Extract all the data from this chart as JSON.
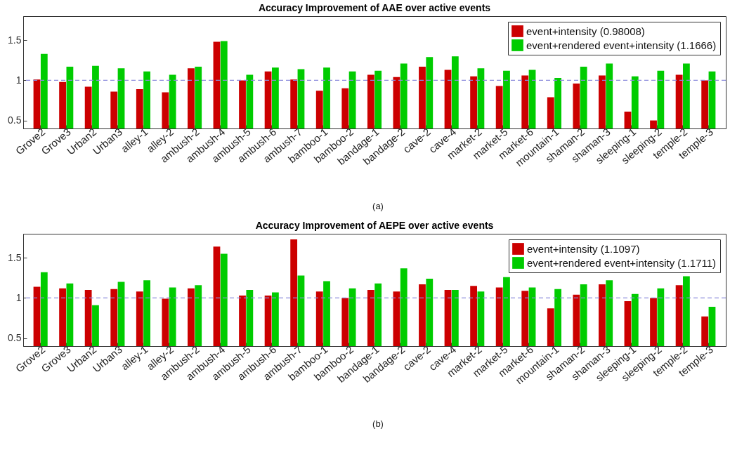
{
  "chart_data": [
    {
      "type": "bar",
      "title": "Accuracy Improvement of AAE over active events",
      "categories": [
        "Grove2",
        "Grove3",
        "Urban2",
        "Urban3",
        "alley-1",
        "alley-2",
        "ambush-2",
        "ambush-4",
        "ambush-5",
        "ambush-6",
        "ambush-7",
        "bamboo-1",
        "bamboo-2",
        "bandage-1",
        "bandage-2",
        "cave-2",
        "cave-4",
        "market-2",
        "market-5",
        "market-6",
        "mountain-1",
        "shaman-2",
        "shaman-3",
        "sleeping-1",
        "sleeping-2",
        "temple-2",
        "temple-3"
      ],
      "series": [
        {
          "name": "event+intensity (0.98008)",
          "color": "#cc0000",
          "values": [
            1.01,
            0.98,
            0.92,
            0.86,
            0.89,
            0.85,
            1.15,
            1.48,
            1.0,
            1.11,
            1.01,
            0.87,
            0.9,
            1.07,
            1.04,
            1.17,
            1.13,
            1.05,
            0.93,
            1.06,
            0.79,
            0.96,
            1.06,
            0.61,
            0.5,
            1.07,
            1.0
          ]
        },
        {
          "name": "event+rendered event+intensity (1.1666)",
          "color": "#00cc00",
          "values": [
            1.33,
            1.17,
            1.18,
            1.15,
            1.11,
            1.07,
            1.17,
            1.49,
            1.07,
            1.16,
            1.14,
            1.16,
            1.11,
            1.12,
            1.21,
            1.29,
            1.3,
            1.15,
            1.12,
            1.13,
            1.03,
            1.17,
            1.21,
            1.05,
            1.12,
            1.21,
            1.11
          ]
        }
      ],
      "ylim": [
        0.4,
        1.8
      ],
      "yticks": [
        0.5,
        1,
        1.5
      ],
      "grid": false,
      "legend": "top right",
      "ref_lines": [
        {
          "axis": "y",
          "value": 1,
          "color": "#8c8cdc",
          "line_style": "dashed"
        }
      ],
      "annotations": [
        "(a)"
      ]
    },
    {
      "type": "bar",
      "title": "Accuracy Improvement of AEPE over active events",
      "categories": [
        "Grove2",
        "Grove3",
        "Urban2",
        "Urban3",
        "alley-1",
        "alley-2",
        "ambush-2",
        "ambush-4",
        "ambush-5",
        "ambush-6",
        "ambush-7",
        "bamboo-1",
        "bamboo-2",
        "bandage-1",
        "bandage-2",
        "cave-2",
        "cave-4",
        "market-2",
        "market-5",
        "market-6",
        "mountain-1",
        "shaman-2",
        "shaman-3",
        "sleeping-1",
        "sleeping-2",
        "temple-2",
        "temple-3"
      ],
      "series": [
        {
          "name": "event+intensity (1.1097)",
          "color": "#cc0000",
          "values": [
            1.14,
            1.12,
            1.1,
            1.11,
            1.08,
            0.99,
            1.12,
            1.64,
            1.03,
            1.03,
            1.73,
            1.08,
            1.0,
            1.1,
            1.08,
            1.17,
            1.1,
            1.15,
            1.13,
            1.09,
            0.87,
            1.04,
            1.17,
            0.96,
            1.0,
            1.16,
            0.77
          ]
        },
        {
          "name": "event+rendered event+intensity (1.1711)",
          "color": "#00cc00",
          "values": [
            1.32,
            1.18,
            0.91,
            1.2,
            1.22,
            1.13,
            1.16,
            1.55,
            1.1,
            1.07,
            1.28,
            1.21,
            1.12,
            1.18,
            1.37,
            1.24,
            1.1,
            1.08,
            1.26,
            1.13,
            1.11,
            1.17,
            1.22,
            1.05,
            1.12,
            1.27,
            0.89
          ]
        }
      ],
      "ylim": [
        0.4,
        1.8
      ],
      "yticks": [
        0.5,
        1,
        1.5
      ],
      "grid": false,
      "legend": "top right",
      "ref_lines": [
        {
          "axis": "y",
          "value": 1,
          "color": "#8c8cdc",
          "line_style": "dashed"
        }
      ],
      "annotations": [
        "(b)"
      ]
    }
  ]
}
